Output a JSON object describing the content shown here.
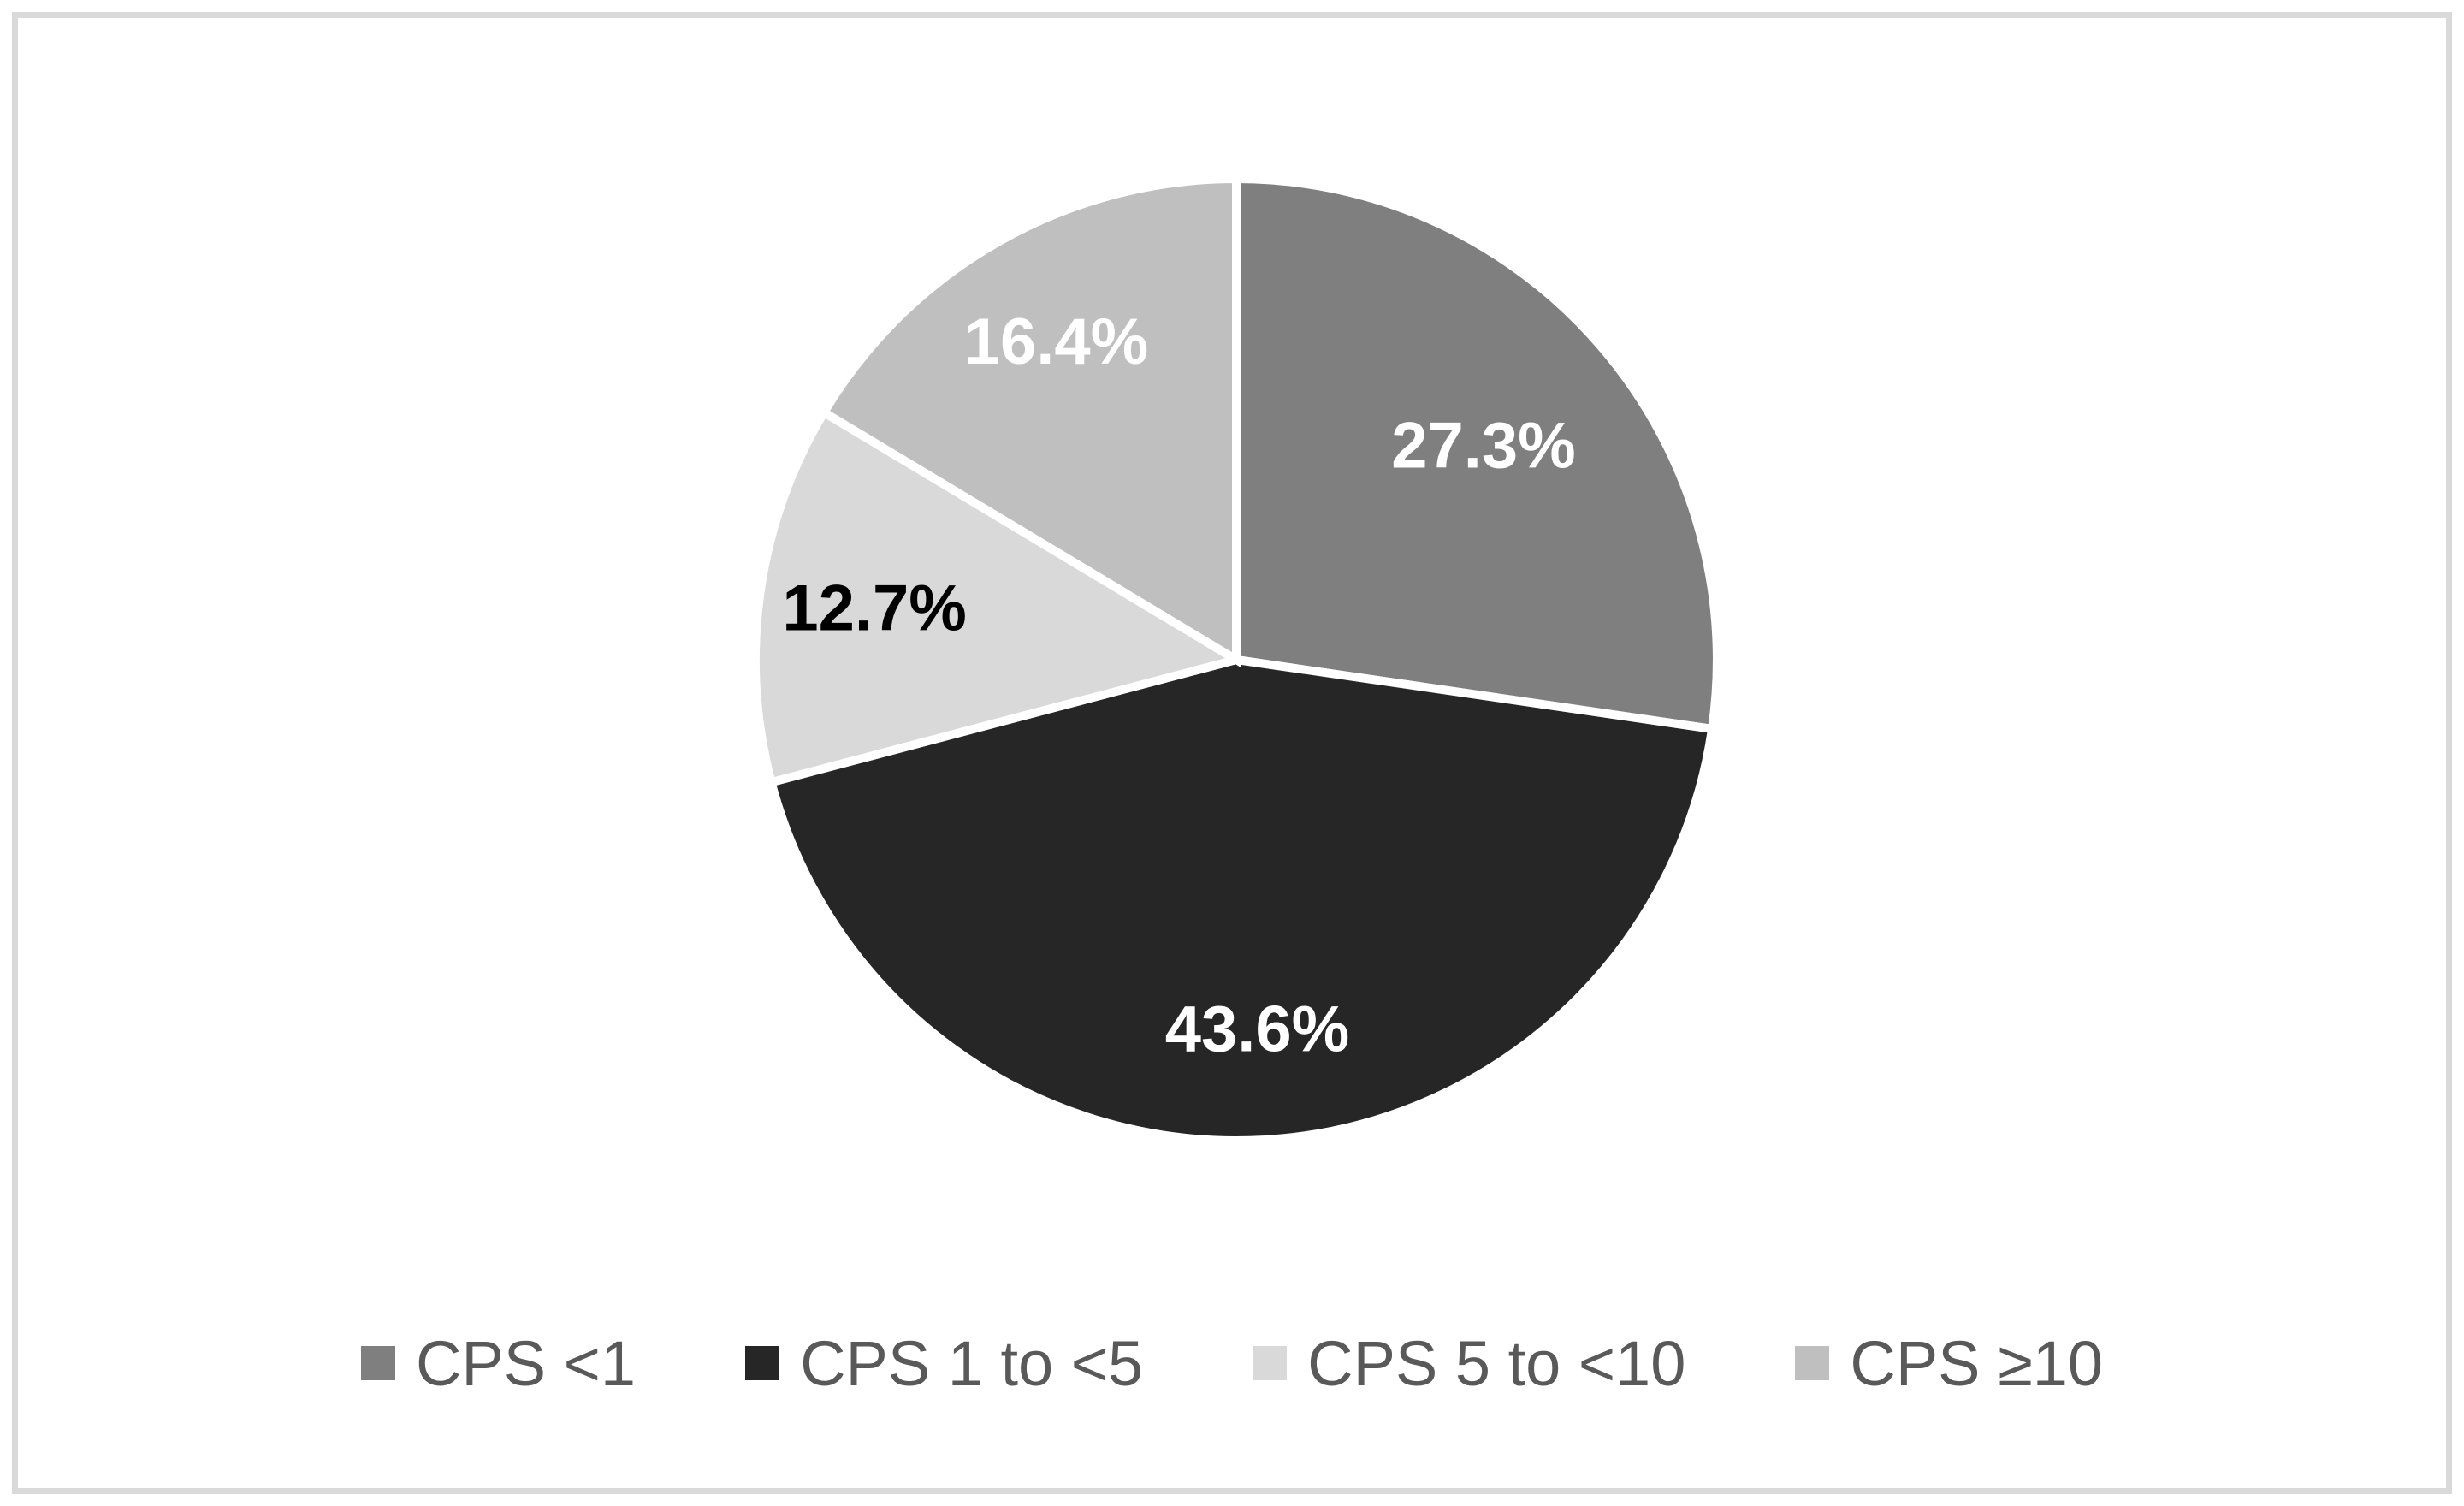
{
  "chart_data": {
    "type": "pie",
    "title": "",
    "categories": [
      "CPS <1",
      "CPS 1 to <5",
      "CPS 5 to <10",
      "CPS ≥10"
    ],
    "values": [
      27.3,
      43.6,
      12.7,
      16.4
    ],
    "data_labels": [
      "27.3%",
      "43.6%",
      "12.7%",
      "16.4%"
    ],
    "slice_colors": [
      "#7f7f7f",
      "#262626",
      "#d9d9d9",
      "#bfbfbf"
    ],
    "data_label_colors": [
      "#ffffff",
      "#ffffff",
      "#000000",
      "#ffffff"
    ],
    "start_angle_deg": 0,
    "direction": "clockwise",
    "slice_border_color": "#ffffff",
    "legend_position": "bottom",
    "legend_entries": [
      "CPS <1",
      "CPS 1 to <5",
      "CPS 5 to <10",
      "CPS ≥10"
    ],
    "legend_text_color": "#595959",
    "frame_color": "#d9d9d9",
    "background_color": "#ffffff"
  }
}
